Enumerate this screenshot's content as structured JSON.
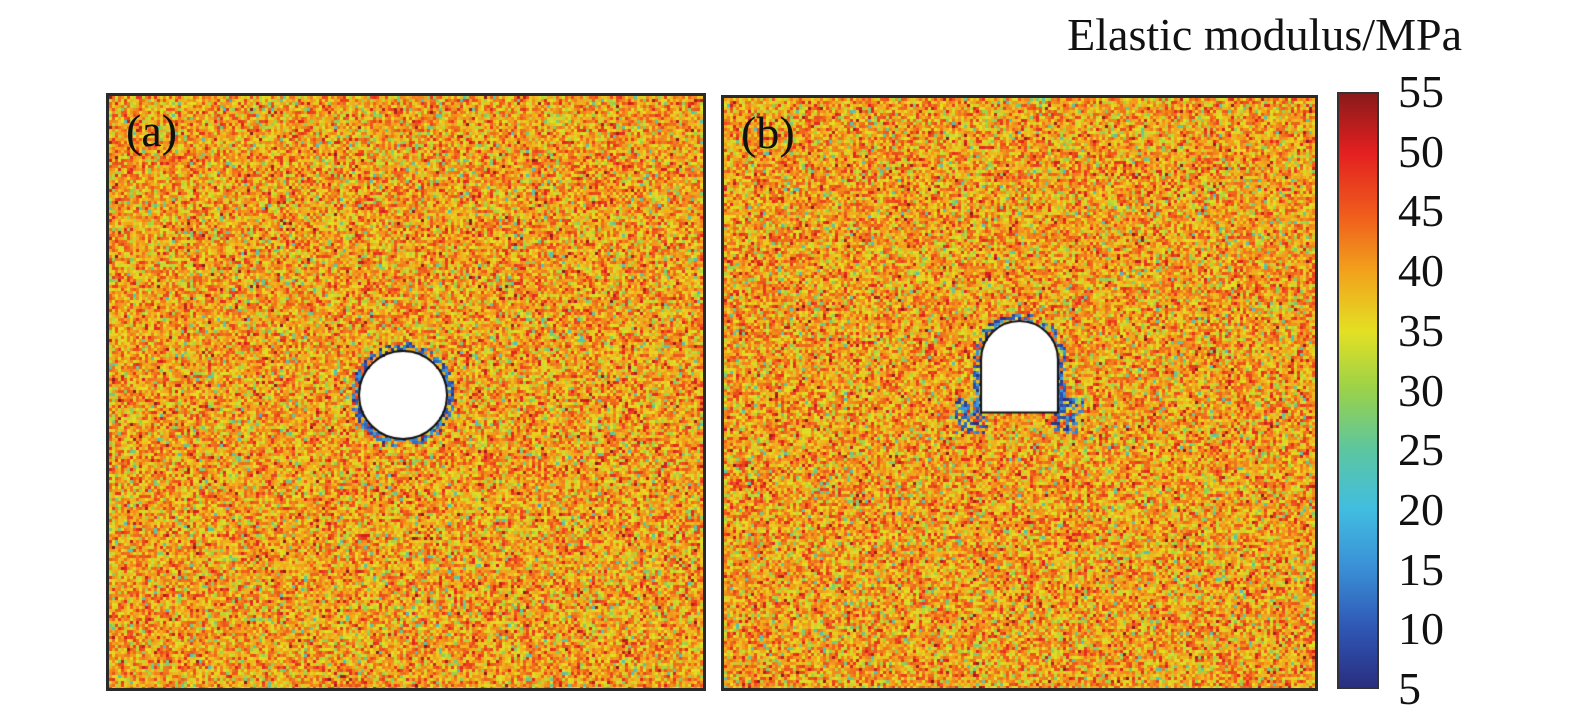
{
  "chart_data": {
    "type": "heatmap",
    "title": "Elastic modulus/MPa",
    "panels": [
      {
        "label": "(a)",
        "opening": "circular"
      },
      {
        "label": "(b)",
        "opening": "arched"
      }
    ],
    "colorbar": {
      "ticks": [
        55,
        50,
        45,
        40,
        35,
        30,
        25,
        20,
        15,
        10,
        5
      ],
      "range": [
        5,
        55
      ],
      "colormap": [
        "#2a2e80",
        "#2f57b5",
        "#3a8fd6",
        "#41bde0",
        "#5cc6a0",
        "#98d24a",
        "#e4e023",
        "#f2a21c",
        "#ef5a1c",
        "#e42020",
        "#8a1a1a"
      ]
    },
    "background_modulus_mean": 40
  }
}
